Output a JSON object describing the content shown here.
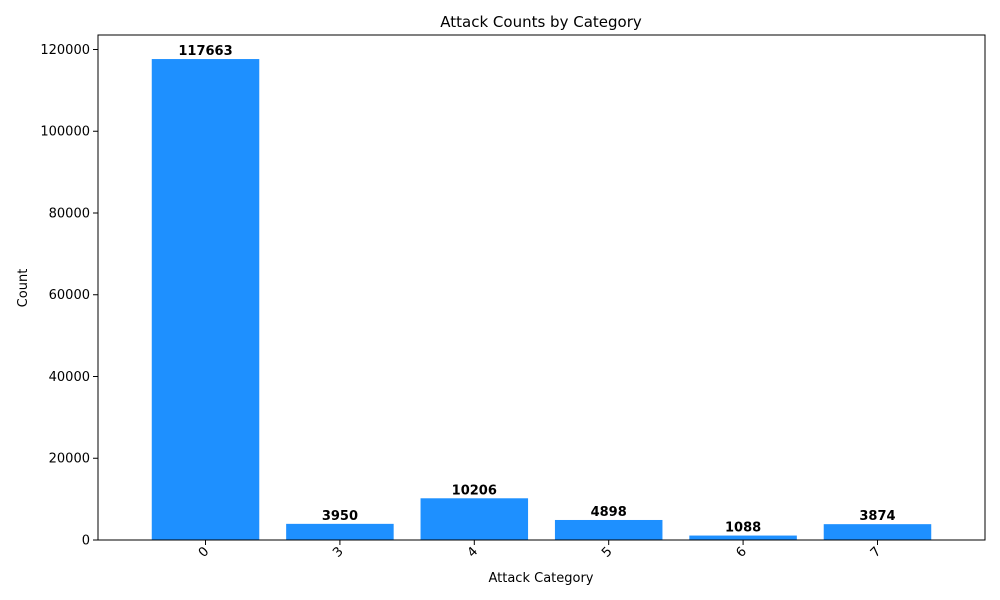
{
  "chart_data": {
    "type": "bar",
    "title": "Attack Counts by Category",
    "xlabel": "Attack Category",
    "ylabel": "Count",
    "categories": [
      "0",
      "3",
      "4",
      "5",
      "6",
      "7"
    ],
    "values": [
      117663,
      3950,
      10206,
      4898,
      1088,
      3874
    ],
    "data_labels": [
      "117663",
      "3950",
      "10206",
      "4898",
      "1088",
      "3874"
    ],
    "yticks": [
      0,
      20000,
      40000,
      60000,
      80000,
      100000,
      120000
    ],
    "ylim": [
      0,
      123546
    ],
    "bar_color": "#1e90ff",
    "grid": false,
    "x_tick_rotation": "45 degrees"
  }
}
